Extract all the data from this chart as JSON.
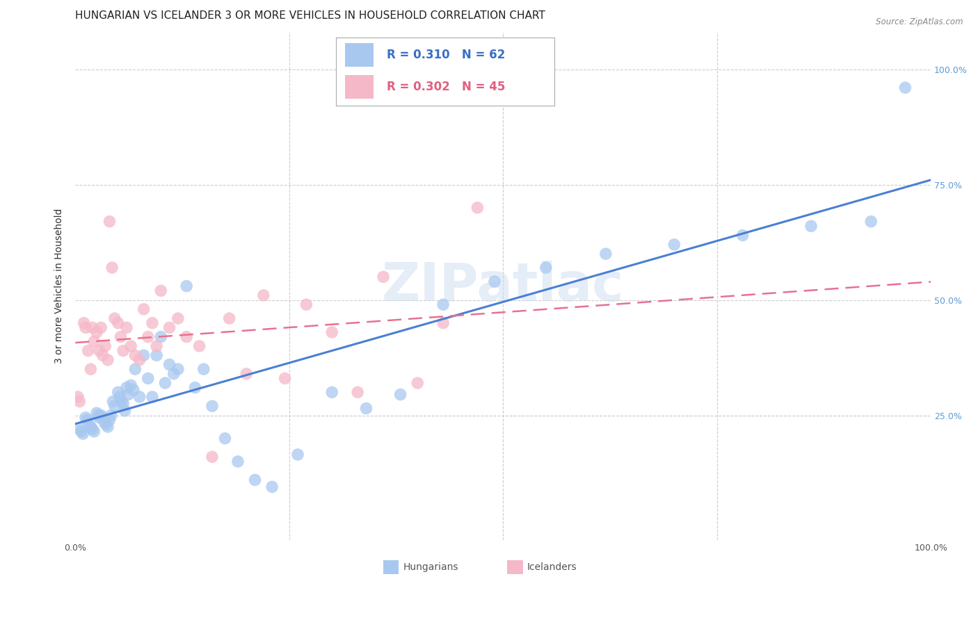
{
  "title": "HUNGARIAN VS ICELANDER 3 OR MORE VEHICLES IN HOUSEHOLD CORRELATION CHART",
  "source": "Source: ZipAtlas.com",
  "ylabel": "3 or more Vehicles in Household",
  "xlim": [
    0,
    1.0
  ],
  "ylim": [
    -0.02,
    1.08
  ],
  "legend_blue_R": "0.310",
  "legend_blue_N": "62",
  "legend_pink_R": "0.302",
  "legend_pink_N": "45",
  "blue_color": "#a8c8f0",
  "pink_color": "#f5b8c8",
  "blue_line_color": "#4a7fd4",
  "pink_line_color": "#e87090",
  "watermark": "ZIPatlас",
  "hun_x": [
    0.005,
    0.007,
    0.009,
    0.012,
    0.014,
    0.016,
    0.018,
    0.02,
    0.022,
    0.025,
    0.027,
    0.028,
    0.03,
    0.032,
    0.034,
    0.036,
    0.038,
    0.04,
    0.042,
    0.044,
    0.046,
    0.05,
    0.052,
    0.054,
    0.056,
    0.058,
    0.06,
    0.062,
    0.065,
    0.068,
    0.07,
    0.075,
    0.08,
    0.085,
    0.09,
    0.095,
    0.1,
    0.105,
    0.11,
    0.115,
    0.12,
    0.13,
    0.14,
    0.15,
    0.16,
    0.175,
    0.19,
    0.21,
    0.23,
    0.26,
    0.3,
    0.34,
    0.38,
    0.43,
    0.49,
    0.55,
    0.62,
    0.7,
    0.78,
    0.86,
    0.93,
    0.97
  ],
  "hun_y": [
    0.22,
    0.215,
    0.21,
    0.245,
    0.24,
    0.23,
    0.225,
    0.22,
    0.215,
    0.255,
    0.25,
    0.245,
    0.25,
    0.245,
    0.235,
    0.23,
    0.225,
    0.24,
    0.25,
    0.28,
    0.27,
    0.3,
    0.29,
    0.28,
    0.275,
    0.26,
    0.31,
    0.295,
    0.315,
    0.305,
    0.35,
    0.29,
    0.38,
    0.33,
    0.29,
    0.38,
    0.42,
    0.32,
    0.36,
    0.34,
    0.35,
    0.53,
    0.31,
    0.35,
    0.27,
    0.2,
    0.15,
    0.11,
    0.095,
    0.165,
    0.3,
    0.265,
    0.295,
    0.49,
    0.54,
    0.57,
    0.6,
    0.62,
    0.64,
    0.66,
    0.67,
    0.96
  ],
  "ice_x": [
    0.003,
    0.005,
    0.01,
    0.012,
    0.015,
    0.018,
    0.02,
    0.022,
    0.025,
    0.028,
    0.03,
    0.032,
    0.035,
    0.038,
    0.04,
    0.043,
    0.046,
    0.05,
    0.053,
    0.056,
    0.06,
    0.065,
    0.07,
    0.075,
    0.08,
    0.085,
    0.09,
    0.095,
    0.1,
    0.11,
    0.12,
    0.13,
    0.145,
    0.16,
    0.18,
    0.2,
    0.22,
    0.245,
    0.27,
    0.3,
    0.33,
    0.36,
    0.4,
    0.43,
    0.47
  ],
  "ice_y": [
    0.29,
    0.28,
    0.45,
    0.44,
    0.39,
    0.35,
    0.44,
    0.41,
    0.43,
    0.39,
    0.44,
    0.38,
    0.4,
    0.37,
    0.67,
    0.57,
    0.46,
    0.45,
    0.42,
    0.39,
    0.44,
    0.4,
    0.38,
    0.37,
    0.48,
    0.42,
    0.45,
    0.4,
    0.52,
    0.44,
    0.46,
    0.42,
    0.4,
    0.16,
    0.46,
    0.34,
    0.51,
    0.33,
    0.49,
    0.43,
    0.3,
    0.55,
    0.32,
    0.45,
    0.7
  ],
  "grid_color": "#cccccc",
  "background_color": "#ffffff",
  "title_fontsize": 11,
  "axis_label_fontsize": 10,
  "tick_fontsize": 9
}
